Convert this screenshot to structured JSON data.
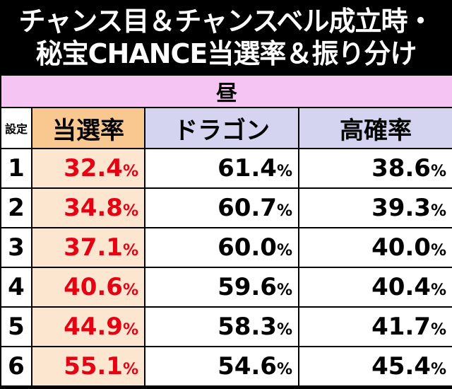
{
  "title": {
    "line1": "チャンス目＆チャンスベル成立時・",
    "line2": "秘宝CHANCE当選率＆振り分け"
  },
  "section_label": "昼",
  "headers": {
    "setting": "設定",
    "prob": "当選率",
    "dragon": "ドラゴン",
    "high": "高確率"
  },
  "percent_sign": "%",
  "rows": [
    {
      "setting": "1",
      "prob": "32.4",
      "dragon": "61.4",
      "high": "38.6"
    },
    {
      "setting": "2",
      "prob": "34.8",
      "dragon": "60.7",
      "high": "39.3"
    },
    {
      "setting": "3",
      "prob": "37.1",
      "dragon": "60.0",
      "high": "40.0"
    },
    {
      "setting": "4",
      "prob": "40.6",
      "dragon": "59.6",
      "high": "40.4"
    },
    {
      "setting": "5",
      "prob": "44.9",
      "dragon": "58.3",
      "high": "41.7"
    },
    {
      "setting": "6",
      "prob": "55.1",
      "dragon": "54.6",
      "high": "45.4"
    }
  ],
  "colors": {
    "section_bg": "#f5c4f2",
    "header_bg": "#d4d4f0",
    "prob_header_bg": "#f9c891",
    "prob_cell_bg": "#fde6cf",
    "prob_text": "#e60012"
  }
}
